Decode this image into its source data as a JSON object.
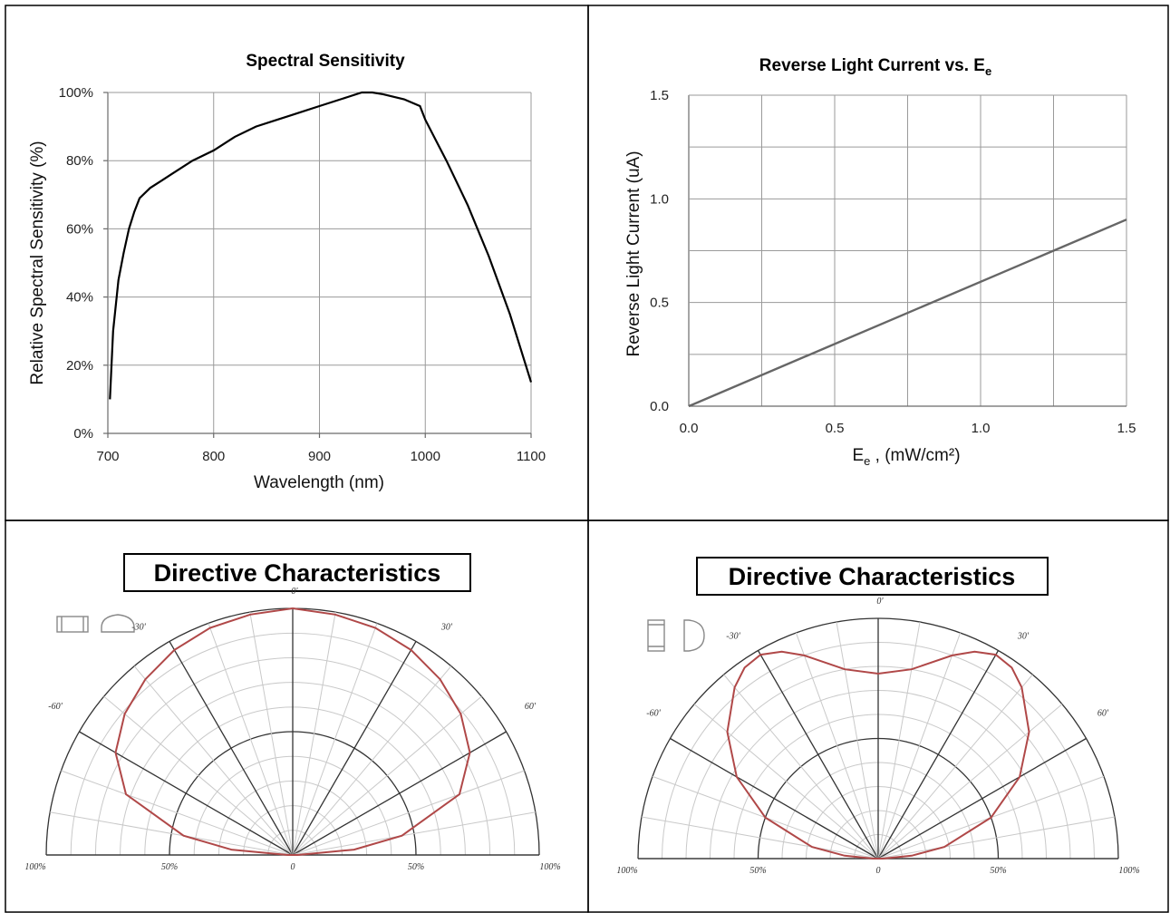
{
  "chart_data": [
    {
      "type": "line",
      "title": "Spectral Sensitivity",
      "xlabel": "Wavelength (nm)",
      "ylabel": "Relative Spectral Sensitivity  (%)",
      "xlim": [
        700,
        1100
      ],
      "ylim": [
        0,
        100
      ],
      "xticks": [
        "700",
        "800",
        "900",
        "1000",
        "1100"
      ],
      "yticks": [
        "0%",
        "20%",
        "40%",
        "60%",
        "80%",
        "100%"
      ],
      "grid": true,
      "series": [
        {
          "x": [
            702,
            705,
            710,
            715,
            720,
            725,
            730,
            740,
            750,
            760,
            780,
            800,
            820,
            840,
            860,
            880,
            900,
            920,
            940,
            950,
            960,
            980,
            995,
            1000,
            1010,
            1020,
            1040,
            1060,
            1080,
            1100
          ],
          "y": [
            10,
            30,
            45,
            53,
            60,
            65,
            69,
            72,
            74,
            76,
            80,
            83,
            87,
            90,
            92,
            94,
            96,
            98,
            100,
            100,
            99.5,
            98,
            96,
            92,
            86,
            80,
            67,
            52,
            35,
            15
          ]
        }
      ]
    },
    {
      "type": "line",
      "title": "Reverse Light Current vs. E",
      "title_sub": "e",
      "xlabel": "E",
      "xlabel_sub": "e",
      "xlabel_rest": " , (mW/cm²)",
      "ylabel": "Reverse Light Current (uA)",
      "xlim": [
        0,
        1.5
      ],
      "ylim": [
        0,
        1.5
      ],
      "xticks": [
        "0.0",
        "0.5",
        "1.0",
        "1.5"
      ],
      "yticks": [
        "0.0",
        "0.5",
        "1.0",
        "1.5"
      ],
      "grid": true,
      "series": [
        {
          "x": [
            0,
            1.5
          ],
          "y": [
            0,
            0.9
          ]
        }
      ]
    },
    {
      "type": "polar",
      "title": "Directive Characteristics",
      "angle_labels": [
        "0'",
        "30'",
        "-30'",
        "60'",
        "-60'"
      ],
      "radius_labels": [
        "100%",
        "50%",
        "0",
        "50%",
        "100%"
      ],
      "series": [
        {
          "angle_deg": [
            0,
            10,
            20,
            30,
            40,
            50,
            60,
            70,
            80,
            85,
            90
          ],
          "relative": [
            1.0,
            0.99,
            0.98,
            0.96,
            0.93,
            0.89,
            0.83,
            0.72,
            0.45,
            0.25,
            0.02
          ]
        }
      ]
    },
    {
      "type": "polar",
      "title": "Directive Characteristics",
      "angle_labels": [
        "0'",
        "30'",
        "-30'",
        "60'",
        "-60'"
      ],
      "radius_labels": [
        "100%",
        "50%",
        "0",
        "50%",
        "100%"
      ],
      "series": [
        {
          "angle_deg": [
            0,
            10,
            20,
            25,
            30,
            35,
            40,
            50,
            60,
            70,
            80,
            85,
            90
          ],
          "relative": [
            0.77,
            0.8,
            0.9,
            0.95,
            0.98,
            0.97,
            0.93,
            0.82,
            0.68,
            0.5,
            0.28,
            0.14,
            0.02
          ]
        }
      ]
    }
  ]
}
